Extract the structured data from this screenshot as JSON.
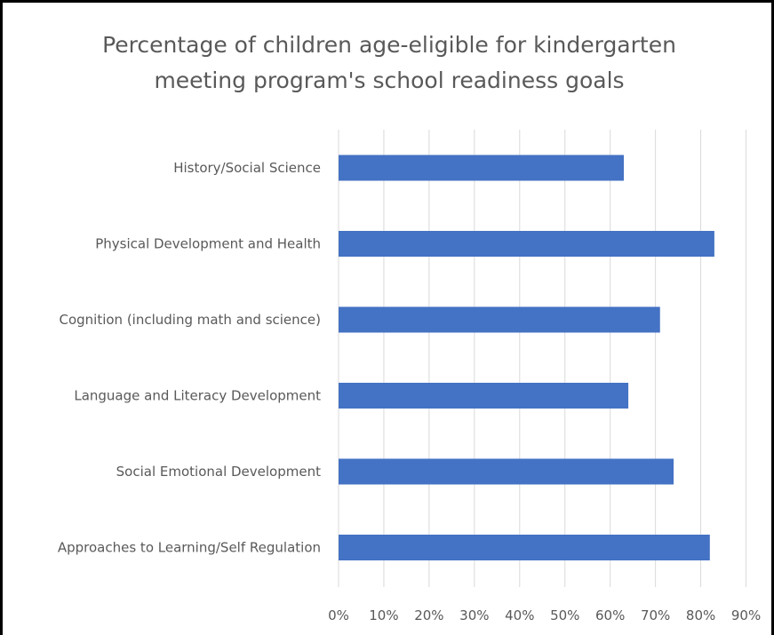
{
  "chart_data": {
    "type": "bar",
    "orientation": "horizontal",
    "title": "Percentage of children age-eligible for kindergarten meeting program's school readiness goals",
    "title_lines": [
      "Percentage of children age-eligible for kindergarten",
      "meeting program's school readiness goals"
    ],
    "categories": [
      "History/Social Science",
      "Physical Development and Health",
      "Cognition (including math and science)",
      "Language and Literacy Development",
      "Social Emotional Development",
      "Approaches to Learning/Self Regulation"
    ],
    "values": [
      0.63,
      0.83,
      0.71,
      0.64,
      0.74,
      0.82
    ],
    "xlim": [
      0,
      0.9
    ],
    "x_ticks": [
      0,
      0.1,
      0.2,
      0.3,
      0.4,
      0.5,
      0.6,
      0.7,
      0.8,
      0.9
    ],
    "x_tick_labels": [
      "0%",
      "10%",
      "20%",
      "30%",
      "40%",
      "50%",
      "60%",
      "70%",
      "80%",
      "90%"
    ],
    "xlabel": "",
    "ylabel": "",
    "grid": "vertical",
    "legend": "none",
    "bar_color": "#4472C4",
    "grid_color": "#D9D9D9",
    "text_color": "#595959"
  }
}
